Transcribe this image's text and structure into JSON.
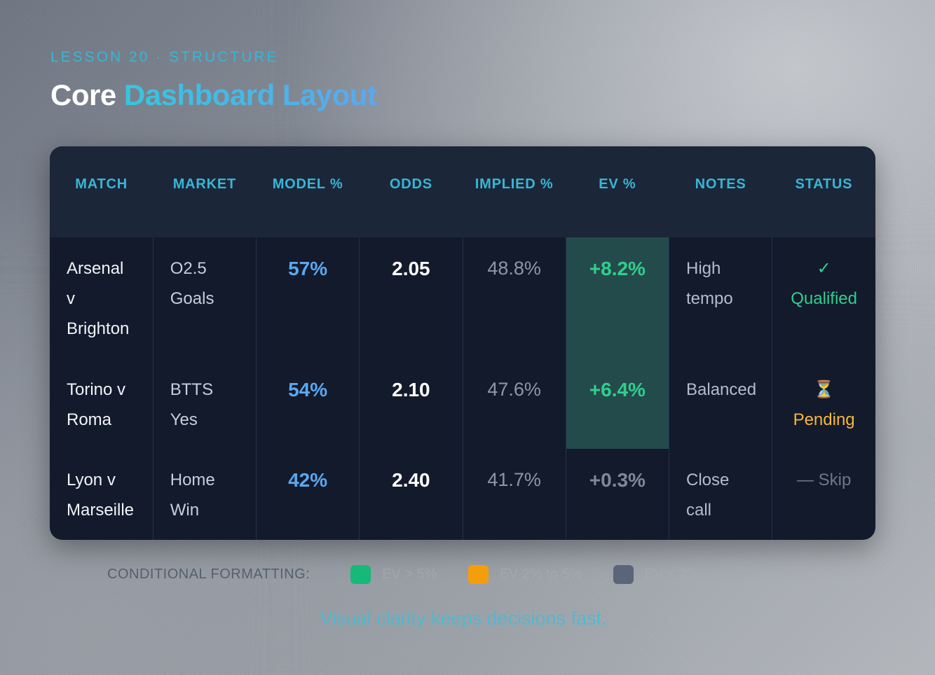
{
  "header": {
    "eyebrow": "LESSON 20 · STRUCTURE",
    "title_plain": "Core ",
    "title_accent": "Dashboard Layout"
  },
  "table": {
    "columns": [
      "MATCH",
      "MARKET",
      "MODEL %",
      "ODDS",
      "IMPLIED %",
      "EV %",
      "NOTES",
      "STATUS"
    ],
    "rows": [
      {
        "match": "Arsenal v Brighton",
        "market": "O2.5 Goals",
        "model": "57%",
        "odds": "2.05",
        "implied": "48.8%",
        "ev": "+8.2%",
        "notes": "High tempo",
        "status_icon": "✓",
        "status_label": "Qualified"
      },
      {
        "match": "Torino v Roma",
        "market": "BTTS Yes",
        "model": "54%",
        "odds": "2.10",
        "implied": "47.6%",
        "ev": "+6.4%",
        "notes": "Balanced",
        "status_icon": "⏳",
        "status_label": "Pending"
      },
      {
        "match": "Lyon v Marseille",
        "market": "Home Win",
        "model": "42%",
        "odds": "2.40",
        "implied": "41.7%",
        "ev": "+0.3%",
        "notes": "Close call",
        "status_icon": "—",
        "status_label": "Skip"
      }
    ]
  },
  "legend": {
    "label": "CONDITIONAL FORMATTING:",
    "items": [
      {
        "color": "#17b978",
        "text": "EV > 5%"
      },
      {
        "color": "#f59e0b",
        "text": "EV 2% to 5%"
      },
      {
        "color": "#5b6578",
        "text": "EV < 2%"
      }
    ]
  },
  "tagline": "Visual clarity keeps decisions fast.",
  "colors": {
    "accent_cyan": "#37b6d6",
    "accent_blue": "#5aa8f0",
    "positive": "#2fcf8e",
    "pending": "#f6b73c",
    "card_bg": "#131a2b",
    "header_bg": "#1c2639"
  }
}
